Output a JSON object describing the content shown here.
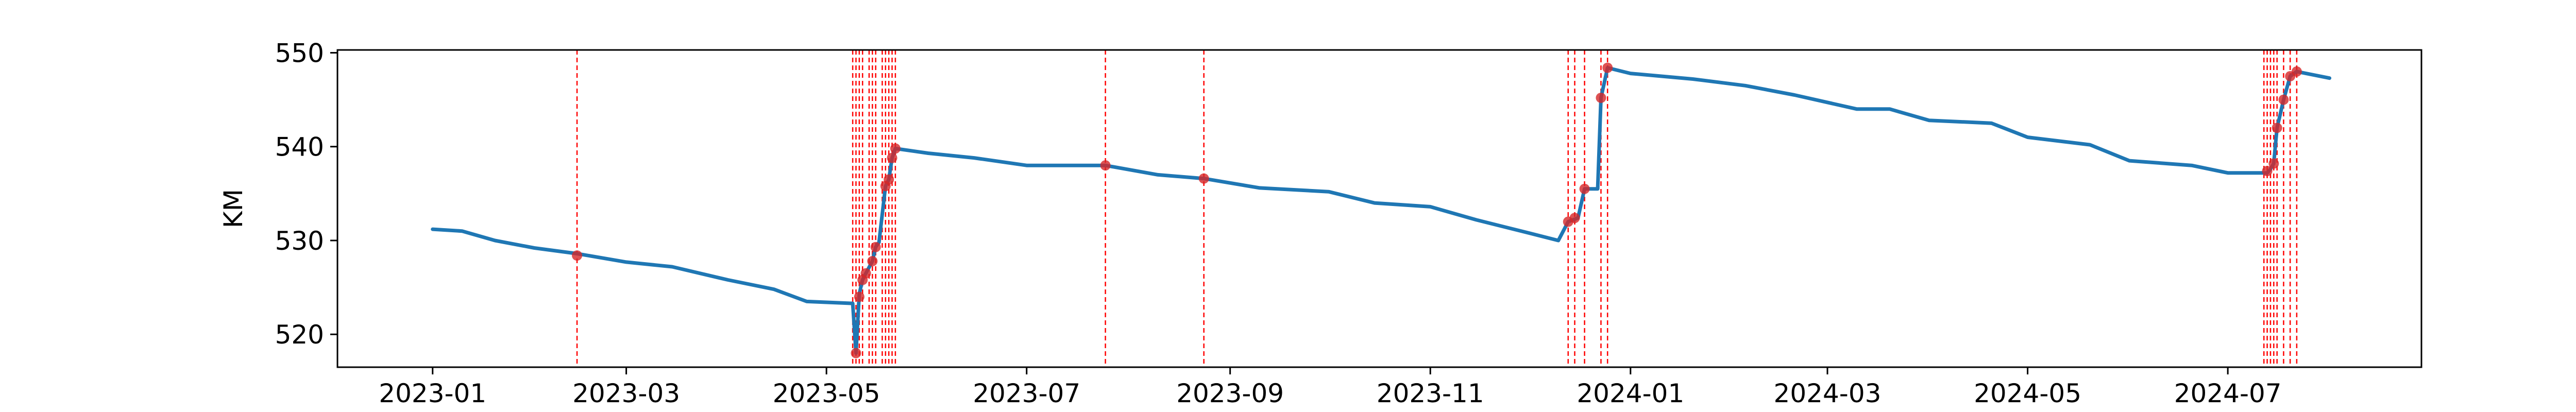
{
  "chart_data": {
    "type": "line",
    "title": "",
    "xlabel": "",
    "ylabel": "KM",
    "xlim": [
      "2022-12-03",
      "2024-08-29"
    ],
    "ylim": [
      516.5,
      550.3
    ],
    "x_ticks": [
      "2023-01",
      "2023-03",
      "2023-05",
      "2023-07",
      "2023-09",
      "2023-11",
      "2024-01",
      "2024-03",
      "2024-05",
      "2024-07"
    ],
    "y_ticks": [
      520,
      530,
      540,
      550
    ],
    "grid": false,
    "legend": "none",
    "colors": {
      "line": "#1f77b4",
      "markers": "#d62728",
      "vlines": "#ff0000"
    },
    "series": [
      {
        "points": [
          [
            "2023-01-01",
            531.2
          ],
          [
            "2023-01-10",
            531.0
          ],
          [
            "2023-01-20",
            530.0
          ],
          [
            "2023-02-01",
            529.2
          ],
          [
            "2023-02-14",
            528.6
          ],
          [
            "2023-03-01",
            527.7
          ],
          [
            "2023-03-15",
            527.2
          ],
          [
            "2023-04-01",
            525.8
          ],
          [
            "2023-04-15",
            524.8
          ],
          [
            "2023-04-25",
            523.5
          ],
          [
            "2023-05-09",
            523.3
          ],
          [
            "2023-05-10",
            518.0
          ],
          [
            "2023-05-11",
            524.3
          ],
          [
            "2023-05-12",
            525.8
          ],
          [
            "2023-05-13",
            526.5
          ],
          [
            "2023-05-15",
            527.8
          ],
          [
            "2023-05-16",
            529.3
          ],
          [
            "2023-05-17",
            529.8
          ],
          [
            "2023-05-19",
            535.8
          ],
          [
            "2023-05-20",
            536.5
          ],
          [
            "2023-05-21",
            538.8
          ],
          [
            "2023-05-22",
            539.8
          ],
          [
            "2023-06-01",
            539.3
          ],
          [
            "2023-06-15",
            538.8
          ],
          [
            "2023-07-01",
            538.0
          ],
          [
            "2023-07-25",
            538.0
          ],
          [
            "2023-08-10",
            537.0
          ],
          [
            "2023-08-24",
            536.6
          ],
          [
            "2023-09-10",
            535.6
          ],
          [
            "2023-10-01",
            535.2
          ],
          [
            "2023-10-15",
            534.0
          ],
          [
            "2023-11-01",
            533.6
          ],
          [
            "2023-11-15",
            532.2
          ],
          [
            "2023-12-01",
            530.8
          ],
          [
            "2023-12-10",
            530.0
          ],
          [
            "2023-12-13",
            532.0
          ],
          [
            "2023-12-16",
            532.4
          ],
          [
            "2023-12-18",
            535.5
          ],
          [
            "2023-12-22",
            535.5
          ],
          [
            "2023-12-23",
            545.2
          ],
          [
            "2023-12-25",
            548.4
          ],
          [
            "2024-01-01",
            547.8
          ],
          [
            "2024-01-20",
            547.2
          ],
          [
            "2024-02-05",
            546.5
          ],
          [
            "2024-02-20",
            545.5
          ],
          [
            "2024-03-10",
            544.0
          ],
          [
            "2024-03-20",
            544.0
          ],
          [
            "2024-04-01",
            542.8
          ],
          [
            "2024-04-20",
            542.5
          ],
          [
            "2024-05-01",
            541.0
          ],
          [
            "2024-05-20",
            540.2
          ],
          [
            "2024-06-01",
            538.5
          ],
          [
            "2024-06-20",
            538.0
          ],
          [
            "2024-07-01",
            537.2
          ],
          [
            "2024-07-13",
            537.2
          ],
          [
            "2024-07-14",
            537.6
          ],
          [
            "2024-07-15",
            538.2
          ],
          [
            "2024-07-16",
            542.0
          ],
          [
            "2024-07-18",
            545.0
          ],
          [
            "2024-07-20",
            547.5
          ],
          [
            "2024-07-22",
            548.0
          ],
          [
            "2024-08-01",
            547.3
          ]
        ]
      }
    ],
    "markers": [
      [
        "2023-02-14",
        528.4
      ],
      [
        "2023-05-10",
        518.0
      ],
      [
        "2023-05-11",
        524.0
      ],
      [
        "2023-05-12",
        525.8
      ],
      [
        "2023-05-13",
        526.5
      ],
      [
        "2023-05-15",
        527.8
      ],
      [
        "2023-05-16",
        529.3
      ],
      [
        "2023-05-19",
        535.8
      ],
      [
        "2023-05-20",
        536.5
      ],
      [
        "2023-05-21",
        538.8
      ],
      [
        "2023-05-22",
        539.8
      ],
      [
        "2023-07-25",
        538.0
      ],
      [
        "2023-08-24",
        536.6
      ],
      [
        "2023-12-13",
        532.0
      ],
      [
        "2023-12-15",
        532.4
      ],
      [
        "2023-12-18",
        535.5
      ],
      [
        "2023-12-23",
        545.2
      ],
      [
        "2023-12-25",
        548.4
      ],
      [
        "2024-07-13",
        537.4
      ],
      [
        "2024-07-15",
        538.2
      ],
      [
        "2024-07-16",
        542.0
      ],
      [
        "2024-07-18",
        545.0
      ],
      [
        "2024-07-20",
        547.5
      ],
      [
        "2024-07-22",
        548.0
      ]
    ],
    "vlines": [
      "2023-02-14",
      "2023-05-09",
      "2023-05-10",
      "2023-05-11",
      "2023-05-12",
      "2023-05-14",
      "2023-05-15",
      "2023-05-16",
      "2023-05-18",
      "2023-05-19",
      "2023-05-20",
      "2023-05-21",
      "2023-05-22",
      "2023-07-25",
      "2023-08-24",
      "2023-12-13",
      "2023-12-15",
      "2023-12-18",
      "2023-12-23",
      "2023-12-25",
      "2024-07-12",
      "2024-07-13",
      "2024-07-14",
      "2024-07-15",
      "2024-07-16",
      "2024-07-18",
      "2024-07-20",
      "2024-07-22"
    ]
  }
}
